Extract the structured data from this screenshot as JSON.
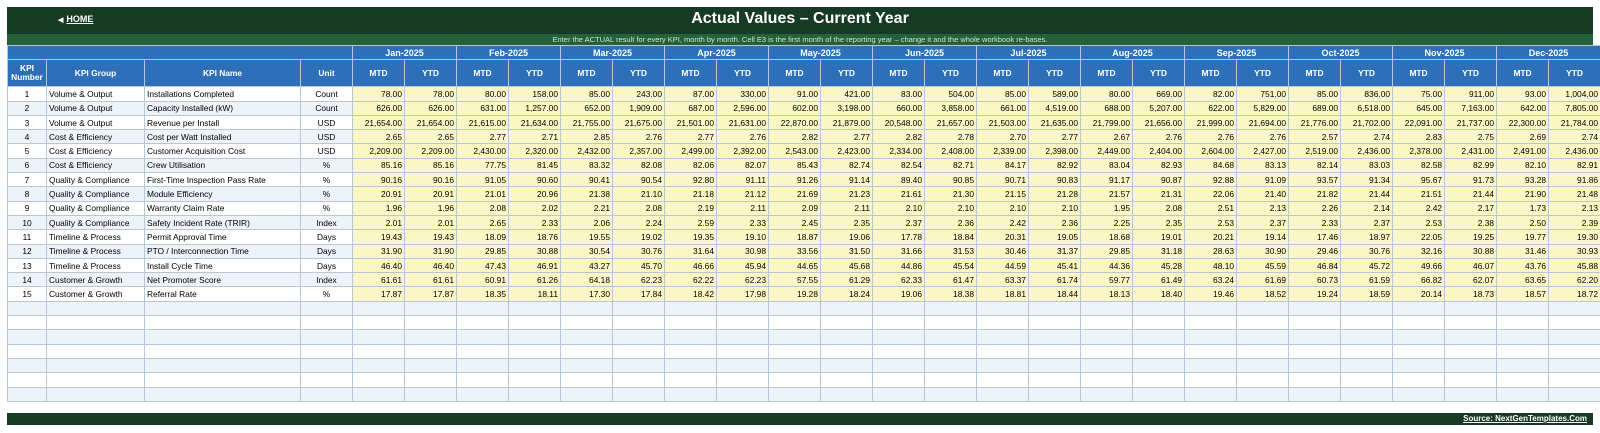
{
  "header": {
    "home_label": "HOME",
    "title": "Actual Values  –  Current Year",
    "instruction": "Enter the ACTUAL result for every KPI, month by month. Cell E3 is the first month of the reporting year – change it and the whole workbook re-bases."
  },
  "columns": {
    "kpi_number": "KPI Number",
    "kpi_group": "KPI Group",
    "kpi_name": "KPI Name",
    "unit": "Unit",
    "mtd": "MTD",
    "ytd": "YTD"
  },
  "months": [
    "Jan-2025",
    "Feb-2025",
    "Mar-2025",
    "Apr-2025",
    "May-2025",
    "Jun-2025",
    "Jul-2025",
    "Aug-2025",
    "Sep-2025",
    "Oct-2025",
    "Nov-2025",
    "Dec-2025"
  ],
  "rows": [
    {
      "num": "1",
      "group": "Volume & Output",
      "name": "Installations Completed",
      "unit": "Count",
      "values": [
        "78.00",
        "78.00",
        "80.00",
        "158.00",
        "85.00",
        "243.00",
        "87.00",
        "330.00",
        "91.00",
        "421.00",
        "83.00",
        "504.00",
        "85.00",
        "589.00",
        "80.00",
        "669.00",
        "82.00",
        "751.00",
        "85.00",
        "836.00",
        "75.00",
        "911.00",
        "93.00",
        "1,004.00"
      ]
    },
    {
      "num": "2",
      "group": "Volume & Output",
      "name": "Capacity Installed (kW)",
      "unit": "Count",
      "values": [
        "626.00",
        "626.00",
        "631.00",
        "1,257.00",
        "652.00",
        "1,909.00",
        "687.00",
        "2,596.00",
        "602.00",
        "3,198.00",
        "660.00",
        "3,858.00",
        "661.00",
        "4,519.00",
        "688.00",
        "5,207.00",
        "622.00",
        "5,829.00",
        "689.00",
        "6,518.00",
        "645.00",
        "7,163.00",
        "642.00",
        "7,805.00"
      ]
    },
    {
      "num": "3",
      "group": "Volume & Output",
      "name": "Revenue per Install",
      "unit": "USD",
      "values": [
        "21,654.00",
        "21,654.00",
        "21,615.00",
        "21,634.00",
        "21,755.00",
        "21,675.00",
        "21,501.00",
        "21,631.00",
        "22,870.00",
        "21,879.00",
        "20,548.00",
        "21,657.00",
        "21,503.00",
        "21,635.00",
        "21,799.00",
        "21,656.00",
        "21,999.00",
        "21,694.00",
        "21,776.00",
        "21,702.00",
        "22,091.00",
        "21,737.00",
        "22,300.00",
        "21,784.00"
      ]
    },
    {
      "num": "4",
      "group": "Cost & Efficiency",
      "name": "Cost per Watt Installed",
      "unit": "USD",
      "values": [
        "2.65",
        "2.65",
        "2.77",
        "2.71",
        "2.85",
        "2.76",
        "2.77",
        "2.76",
        "2.82",
        "2.77",
        "2.82",
        "2.78",
        "2.70",
        "2.77",
        "2.67",
        "2.76",
        "2.76",
        "2.76",
        "2.57",
        "2.74",
        "2.83",
        "2.75",
        "2.69",
        "2.74"
      ]
    },
    {
      "num": "5",
      "group": "Cost & Efficiency",
      "name": "Customer Acquisition Cost",
      "unit": "USD",
      "values": [
        "2,209.00",
        "2,209.00",
        "2,430.00",
        "2,320.00",
        "2,432.00",
        "2,357.00",
        "2,499.00",
        "2,392.00",
        "2,543.00",
        "2,423.00",
        "2,334.00",
        "2,408.00",
        "2,339.00",
        "2,398.00",
        "2,449.00",
        "2,404.00",
        "2,604.00",
        "2,427.00",
        "2,519.00",
        "2,436.00",
        "2,378.00",
        "2,431.00",
        "2,491.00",
        "2,436.00"
      ]
    },
    {
      "num": "6",
      "group": "Cost & Efficiency",
      "name": "Crew Utilisation",
      "unit": "%",
      "values": [
        "85.16",
        "85.16",
        "77.75",
        "81.45",
        "83.32",
        "82.08",
        "82.06",
        "82.07",
        "85.43",
        "82.74",
        "82.54",
        "82.71",
        "84.17",
        "82.92",
        "83.04",
        "82.93",
        "84.68",
        "83.13",
        "82.14",
        "83.03",
        "82.58",
        "82.99",
        "82.10",
        "82.91"
      ]
    },
    {
      "num": "7",
      "group": "Quality & Compliance",
      "name": "First-Time Inspection Pass Rate",
      "unit": "%",
      "values": [
        "90.16",
        "90.16",
        "91.05",
        "90.60",
        "90.41",
        "90.54",
        "92.80",
        "91.11",
        "91.26",
        "91.14",
        "89.40",
        "90.85",
        "90.71",
        "90.83",
        "91.17",
        "90.87",
        "92.88",
        "91.09",
        "93.57",
        "91.34",
        "95.67",
        "91.73",
        "93.28",
        "91.86"
      ]
    },
    {
      "num": "8",
      "group": "Quality & Compliance",
      "name": "Module Efficiency",
      "unit": "%",
      "values": [
        "20.91",
        "20.91",
        "21.01",
        "20.96",
        "21.38",
        "21.10",
        "21.18",
        "21.12",
        "21.69",
        "21.23",
        "21.61",
        "21.30",
        "21.15",
        "21.28",
        "21.57",
        "21.31",
        "22.06",
        "21.40",
        "21.82",
        "21.44",
        "21.51",
        "21.44",
        "21.90",
        "21.48"
      ]
    },
    {
      "num": "9",
      "group": "Quality & Compliance",
      "name": "Warranty Claim Rate",
      "unit": "%",
      "values": [
        "1.96",
        "1.96",
        "2.08",
        "2.02",
        "2.21",
        "2.08",
        "2.19",
        "2.11",
        "2.09",
        "2.11",
        "2.10",
        "2.10",
        "2.10",
        "2.10",
        "1.95",
        "2.08",
        "2.51",
        "2.13",
        "2.26",
        "2.14",
        "2.42",
        "2.17",
        "1.73",
        "2.13"
      ]
    },
    {
      "num": "10",
      "group": "Quality & Compliance",
      "name": "Safety Incident Rate (TRIR)",
      "unit": "Index",
      "values": [
        "2.01",
        "2.01",
        "2.65",
        "2.33",
        "2.06",
        "2.24",
        "2.59",
        "2.33",
        "2.45",
        "2.35",
        "2.37",
        "2.36",
        "2.42",
        "2.36",
        "2.25",
        "2.35",
        "2.53",
        "2.37",
        "2.33",
        "2.37",
        "2.53",
        "2.38",
        "2.50",
        "2.39"
      ]
    },
    {
      "num": "11",
      "group": "Timeline & Process",
      "name": "Permit Approval Time",
      "unit": "Days",
      "values": [
        "19.43",
        "19.43",
        "18.09",
        "18.76",
        "19.55",
        "19.02",
        "19.35",
        "19.10",
        "18.87",
        "19.06",
        "17.78",
        "18.84",
        "20.31",
        "19.05",
        "18.68",
        "19.01",
        "20.21",
        "19.14",
        "17.46",
        "18.97",
        "22.05",
        "19.25",
        "19.77",
        "19.30"
      ]
    },
    {
      "num": "12",
      "group": "Timeline & Process",
      "name": "PTO / Interconnection Time",
      "unit": "Days",
      "values": [
        "31.90",
        "31.90",
        "29.85",
        "30.88",
        "30.54",
        "30.76",
        "31.64",
        "30.98",
        "33.56",
        "31.50",
        "31.66",
        "31.53",
        "30.46",
        "31.37",
        "29.85",
        "31.18",
        "28.63",
        "30.90",
        "29.46",
        "30.76",
        "32.16",
        "30.88",
        "31.46",
        "30.93"
      ]
    },
    {
      "num": "13",
      "group": "Timeline & Process",
      "name": "Install Cycle Time",
      "unit": "Days",
      "values": [
        "46.40",
        "46.40",
        "47.43",
        "46.91",
        "43.27",
        "45.70",
        "46.66",
        "45.94",
        "44.65",
        "45.68",
        "44.86",
        "45.54",
        "44.59",
        "45.41",
        "44.36",
        "45.28",
        "48.10",
        "45.59",
        "46.84",
        "45.72",
        "49.66",
        "46.07",
        "43.76",
        "45.88"
      ]
    },
    {
      "num": "14",
      "group": "Customer & Growth",
      "name": "Net Promoter Score",
      "unit": "Index",
      "values": [
        "61.61",
        "61.61",
        "60.91",
        "61.26",
        "64.18",
        "62.23",
        "62.22",
        "62.23",
        "57.55",
        "61.29",
        "62.33",
        "61.47",
        "63.37",
        "61.74",
        "59.77",
        "61.49",
        "63.24",
        "61.69",
        "60.73",
        "61.59",
        "66.82",
        "62.07",
        "63.65",
        "62.20"
      ]
    },
    {
      "num": "15",
      "group": "Customer & Growth",
      "name": "Referral Rate",
      "unit": "%",
      "values": [
        "17.87",
        "17.87",
        "18.35",
        "18.11",
        "17.30",
        "17.84",
        "18.42",
        "17.98",
        "19.28",
        "18.24",
        "19.06",
        "18.38",
        "18.81",
        "18.44",
        "18.13",
        "18.40",
        "19.46",
        "18.52",
        "19.24",
        "18.59",
        "20.14",
        "18.73",
        "18.57",
        "18.72"
      ]
    }
  ],
  "footer": {
    "source": "Source: NextGenTemplates.Com"
  },
  "colors": {
    "dark_green": "#173a24",
    "mid_green": "#23613a",
    "header_blue": "#2e6fba",
    "value_yellow": "#fbf7c4",
    "row_alt": "#eef3fa"
  }
}
